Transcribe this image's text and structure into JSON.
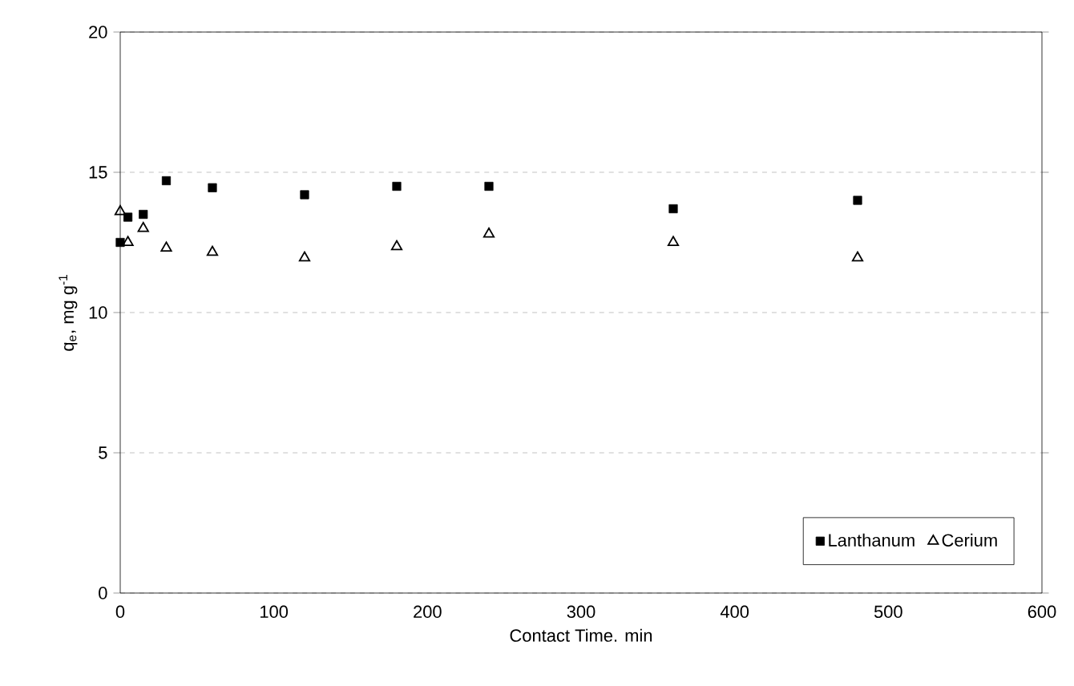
{
  "chart_data": {
    "type": "scatter",
    "xlabel": "Contact Time. min",
    "ylabel": "q$_{e}$, mg g$^{-1}$",
    "xlim": [
      0,
      600
    ],
    "ylim": [
      0,
      20
    ],
    "xticks": [
      0,
      100,
      200,
      300,
      400,
      500,
      600
    ],
    "yticks": [
      0,
      5,
      10,
      15,
      20
    ],
    "grid": "y",
    "legend": "bottom right",
    "series": [
      {
        "name": "Lanthanum",
        "color": "#000000",
        "marker": "square",
        "x": [
          0,
          5,
          15,
          30,
          60,
          120,
          180,
          240,
          360,
          480
        ],
        "values": [
          12.5,
          13.4,
          13.5,
          14.7,
          14.45,
          14.2,
          14.5,
          14.5,
          13.7,
          14.0
        ]
      },
      {
        "name": "Cerium",
        "color": "#000000",
        "marker": "triangle",
        "x": [
          0,
          5,
          15,
          30,
          60,
          120,
          180,
          240,
          360,
          480
        ],
        "values": [
          13.6,
          12.5,
          13.0,
          12.3,
          12.15,
          11.95,
          12.35,
          12.8,
          12.5,
          11.95
        ]
      }
    ]
  }
}
